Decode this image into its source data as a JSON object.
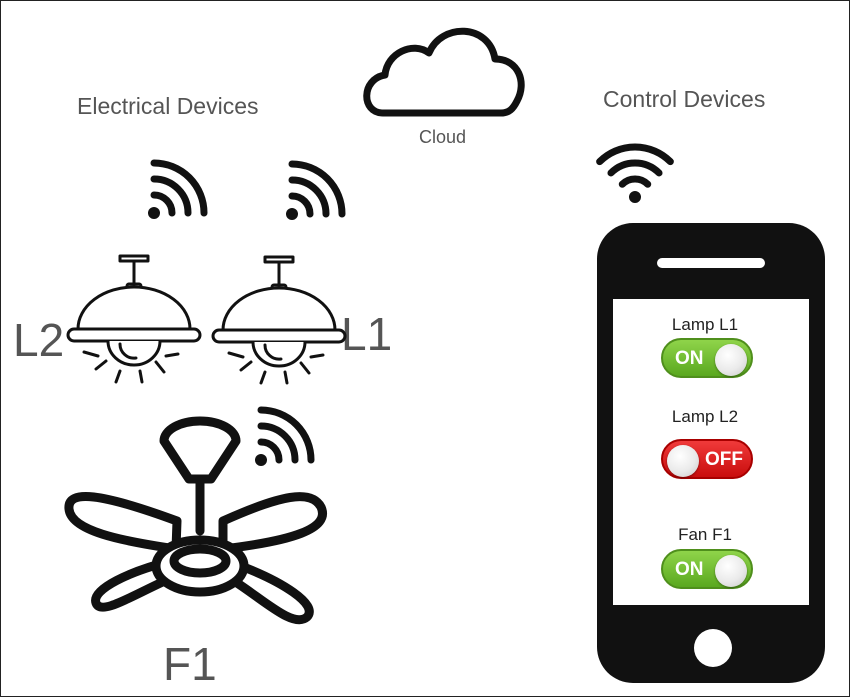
{
  "headings": {
    "electrical_devices": "Electrical Devices",
    "control_devices": "Control Devices",
    "cloud": "Cloud"
  },
  "device_labels": {
    "lamp_left": "L2",
    "lamp_right": "L1",
    "fan": "F1"
  },
  "phone": {
    "controls": [
      {
        "label": "Lamp L1",
        "state": "ON"
      },
      {
        "label": "Lamp L2",
        "state": "OFF"
      },
      {
        "label": "Fan F1",
        "state": "ON"
      }
    ]
  },
  "icons": [
    "cloud-icon",
    "wifi-icon",
    "ceiling-lamp-icon",
    "ceiling-fan-icon",
    "smartphone-icon"
  ],
  "colors": {
    "on": "#6cc12f",
    "off": "#e01515",
    "text": "#555555"
  }
}
